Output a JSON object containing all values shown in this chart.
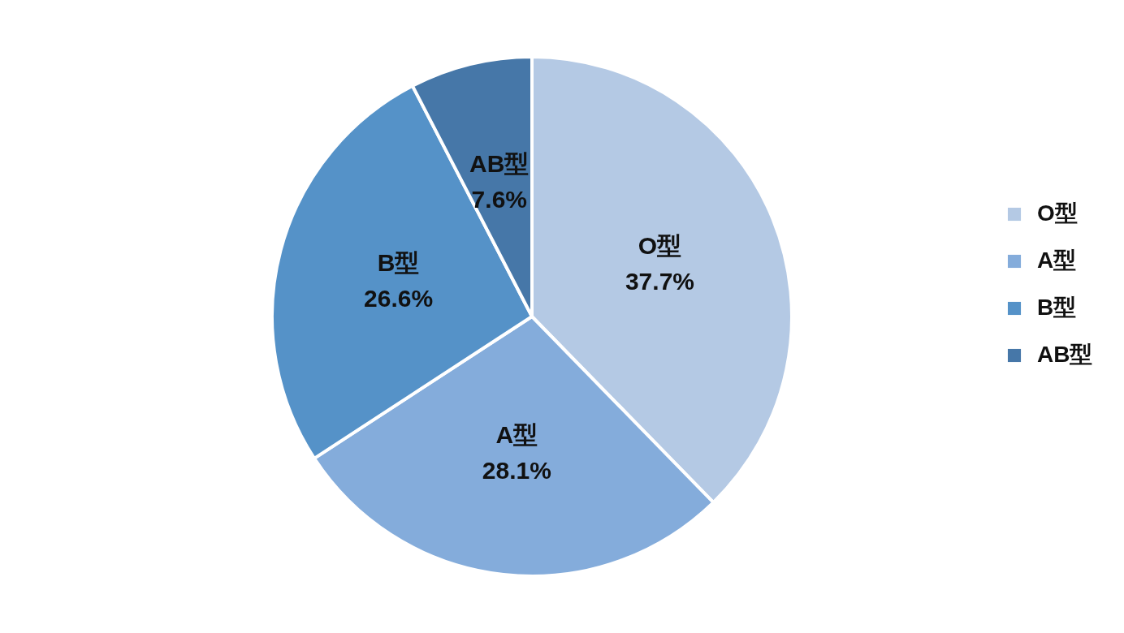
{
  "chart_data": {
    "type": "pie",
    "categories": [
      "O型",
      "A型",
      "B型",
      "AB型"
    ],
    "values": [
      37.7,
      28.1,
      26.6,
      7.6
    ],
    "value_labels": [
      "37.7%",
      "28.1%",
      "26.6%",
      "7.6%"
    ],
    "colors": [
      "#b4c9e4",
      "#84acdb",
      "#5592c8",
      "#4677a8"
    ],
    "legend": "right"
  }
}
